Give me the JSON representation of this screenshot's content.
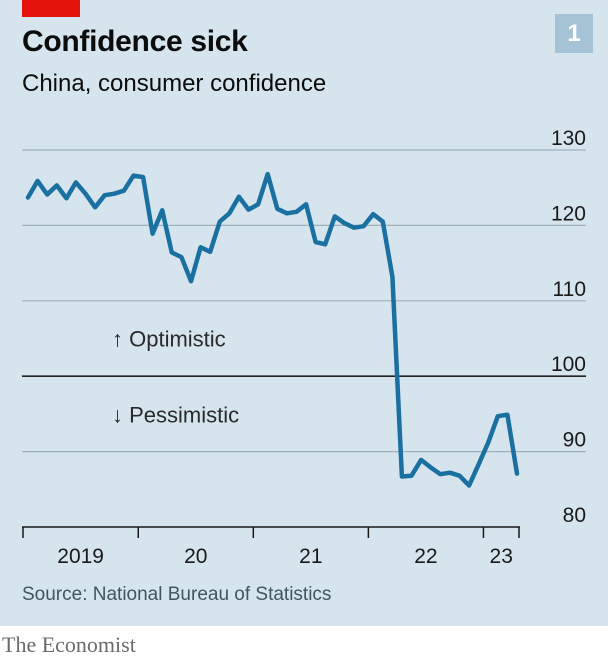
{
  "header": {
    "title": "Confidence sick",
    "subtitle": "China, consumer confidence",
    "chart_number": "1"
  },
  "footer": {
    "source": "Source: National Bureau of Statistics",
    "brand": "The Economist"
  },
  "colors": {
    "line": "#1a70a0",
    "panel": "#d6e4ed",
    "brand_red": "#e3120b",
    "badge": "#a6c3d6"
  },
  "chart_data": {
    "type": "line",
    "title": "Confidence sick",
    "subtitle": "China, consumer confidence",
    "ylim": [
      80,
      130
    ],
    "y_ticks": [
      {
        "value": 80,
        "label": "80"
      },
      {
        "value": 90,
        "label": "90"
      },
      {
        "value": 100,
        "label": "100"
      },
      {
        "value": 110,
        "label": "110"
      },
      {
        "value": 120,
        "label": "120"
      },
      {
        "value": 130,
        "label": "130"
      }
    ],
    "x_labels": [
      "2019",
      "20",
      "21",
      "22",
      "23"
    ],
    "annotations": [
      {
        "text": "↑ Optimistic",
        "y": 104.9
      },
      {
        "text": "↓ Pessimistic",
        "y": 94.8
      }
    ],
    "grid": true,
    "series": [
      {
        "x": [
          "2019-01",
          "2019-02",
          "2019-03",
          "2019-04",
          "2019-05",
          "2019-06",
          "2019-07",
          "2019-08",
          "2019-09",
          "2019-10",
          "2019-11",
          "2019-12",
          "2020-01",
          "2020-02",
          "2020-03",
          "2020-04",
          "2020-05",
          "2020-06",
          "2020-07",
          "2020-08",
          "2020-09",
          "2020-10",
          "2020-11",
          "2020-12",
          "2021-01",
          "2021-02",
          "2021-03",
          "2021-04",
          "2021-05",
          "2021-06",
          "2021-07",
          "2021-08",
          "2021-09",
          "2021-10",
          "2021-11",
          "2021-12",
          "2022-01",
          "2022-02",
          "2022-03",
          "2022-04",
          "2022-05",
          "2022-06",
          "2022-07",
          "2022-08",
          "2022-09",
          "2022-10",
          "2022-11",
          "2022-12",
          "2023-01",
          "2023-02",
          "2023-03",
          "2023-04"
        ],
        "values": [
          123.7,
          125.9,
          124.1,
          125.3,
          123.6,
          125.7,
          124.2,
          122.4,
          124.0,
          124.2,
          124.6,
          126.6,
          126.4,
          118.9,
          122.0,
          116.4,
          115.8,
          112.6,
          117.1,
          116.5,
          120.5,
          121.6,
          123.8,
          122.1,
          122.8,
          126.8,
          122.2,
          121.6,
          121.8,
          122.8,
          117.8,
          117.5,
          121.2,
          120.3,
          119.7,
          119.9,
          121.5,
          120.5,
          113.2,
          86.7,
          86.8,
          88.9,
          87.9,
          87.0,
          87.2,
          86.8,
          85.5,
          88.3,
          91.2,
          94.7,
          94.9,
          87.1
        ]
      }
    ]
  }
}
